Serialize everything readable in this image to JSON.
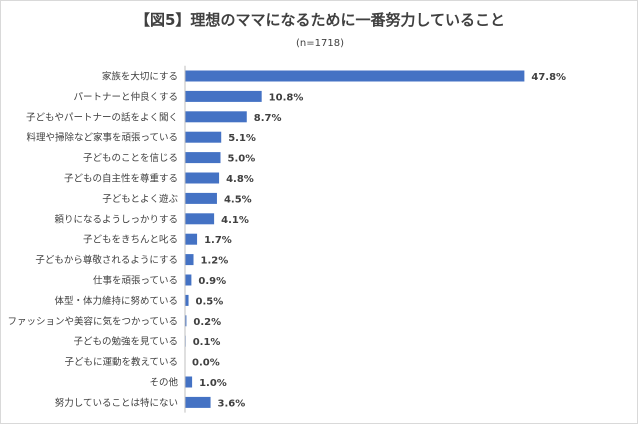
{
  "chart_data": {
    "type": "bar",
    "orientation": "horizontal",
    "title": "【図5】理想のママになるために一番努力していること",
    "subtitle": "(n=1718)",
    "categories": [
      "家族を大切にする",
      "パートナーと仲良くする",
      "子どもやパートナーの話をよく聞く",
      "料理や掃除など家事を頑張っている",
      "子どものことを信じる",
      "子どもの自主性を尊重する",
      "子どもとよく遊ぶ",
      "頼りになるようしっかりする",
      "子どもをきちんと叱る",
      "子どもから尊敬されるようにする",
      "仕事を頑張っている",
      "体型・体力維持に努めている",
      "ファッションや美容に気をつかっている",
      "子どもの勉強を見ている",
      "子どもに運動を教えている",
      "その他",
      "努力していることは特にない"
    ],
    "values": [
      47.8,
      10.8,
      8.7,
      5.1,
      5.0,
      4.8,
      4.5,
      4.1,
      1.7,
      1.2,
      0.9,
      0.5,
      0.2,
      0.1,
      0.0,
      1.0,
      3.6
    ],
    "value_labels": [
      "47.8%",
      "10.8%",
      "8.7%",
      "5.1%",
      "5.0%",
      "4.8%",
      "4.5%",
      "4.1%",
      "1.7%",
      "1.2%",
      "0.9%",
      "0.5%",
      "0.2%",
      "0.1%",
      "0.0%",
      "1.0%",
      "3.6%"
    ],
    "unit": "%",
    "xlim": [
      0,
      50
    ],
    "grid": false,
    "legend": "none",
    "colors": {
      "bar": "#4472c4",
      "highlight_label": "#e83e8c",
      "label": "#404040",
      "axis": "#bfbfbf"
    }
  }
}
